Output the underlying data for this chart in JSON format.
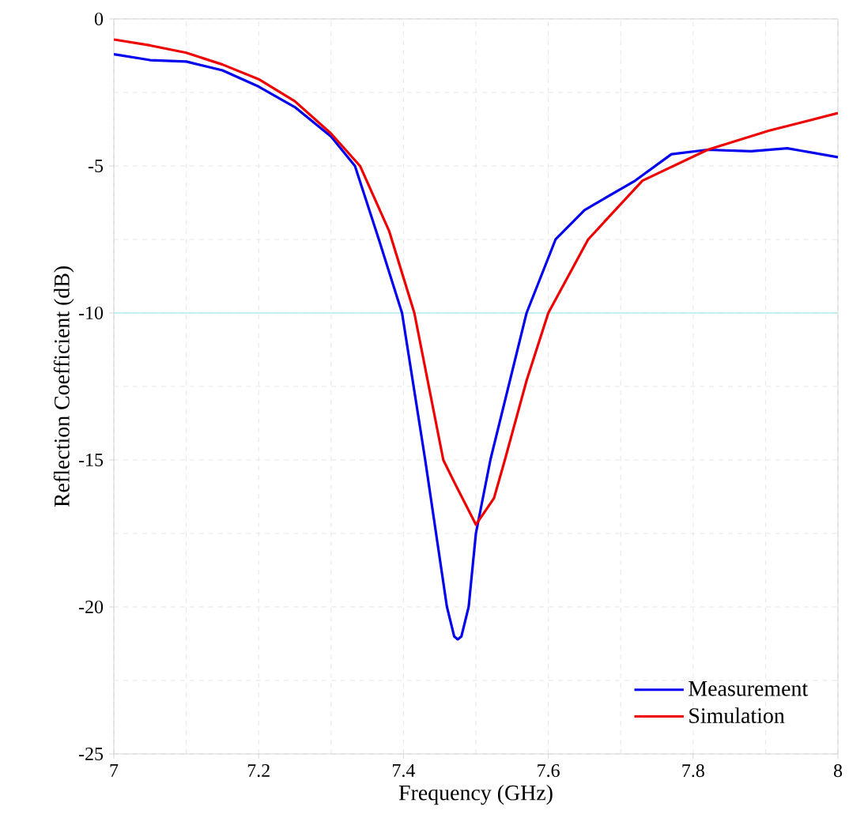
{
  "chart_data": {
    "type": "line",
    "xlabel": "Frequency (GHz)",
    "ylabel": "Reflection Coefficient (dB)",
    "xlim": [
      7,
      8
    ],
    "ylim": [
      -25,
      0
    ],
    "xticks": [
      7,
      7.2,
      7.4,
      7.6,
      7.8,
      8
    ],
    "yticks": [
      -25,
      -20,
      -15,
      -10,
      -5,
      0
    ],
    "grid": true,
    "legend": "bottom right",
    "ref_lines": [
      {
        "axis": "y",
        "value": -10,
        "color": "#b3ecf2"
      }
    ],
    "series": [
      {
        "name": "Measurement",
        "color": "#0000ee",
        "x": [
          7.0,
          7.05,
          7.1,
          7.15,
          7.2,
          7.25,
          7.3,
          7.333,
          7.366,
          7.398,
          7.43,
          7.46,
          7.47,
          7.475,
          7.48,
          7.49,
          7.5,
          7.52,
          7.57,
          7.61,
          7.65,
          7.72,
          7.77,
          7.82,
          7.88,
          7.93,
          8.0
        ],
        "values": [
          -1.2,
          -1.4,
          -1.45,
          -1.75,
          -2.3,
          -3.0,
          -4.0,
          -5,
          -7.5,
          -10,
          -15,
          -20,
          -21.0,
          -21.1,
          -21.0,
          -20,
          -17.5,
          -15,
          -10,
          -7.5,
          -6.5,
          -5.5,
          -4.6,
          -4.45,
          -4.5,
          -4.4,
          -4.7
        ]
      },
      {
        "name": "Simulation",
        "color": "#ee0000",
        "x": [
          7.0,
          7.05,
          7.1,
          7.15,
          7.2,
          7.25,
          7.3,
          7.34,
          7.38,
          7.415,
          7.455,
          7.47,
          7.5,
          7.525,
          7.54,
          7.57,
          7.6,
          7.655,
          7.73,
          7.82,
          7.905,
          8.0
        ],
        "values": [
          -0.7,
          -0.9,
          -1.15,
          -1.55,
          -2.05,
          -2.8,
          -3.9,
          -5,
          -7.2,
          -10,
          -15,
          -15.75,
          -17.2,
          -16.3,
          -15,
          -12.3,
          -10,
          -7.5,
          -5.5,
          -4.45,
          -3.8,
          -3.2
        ]
      }
    ]
  }
}
